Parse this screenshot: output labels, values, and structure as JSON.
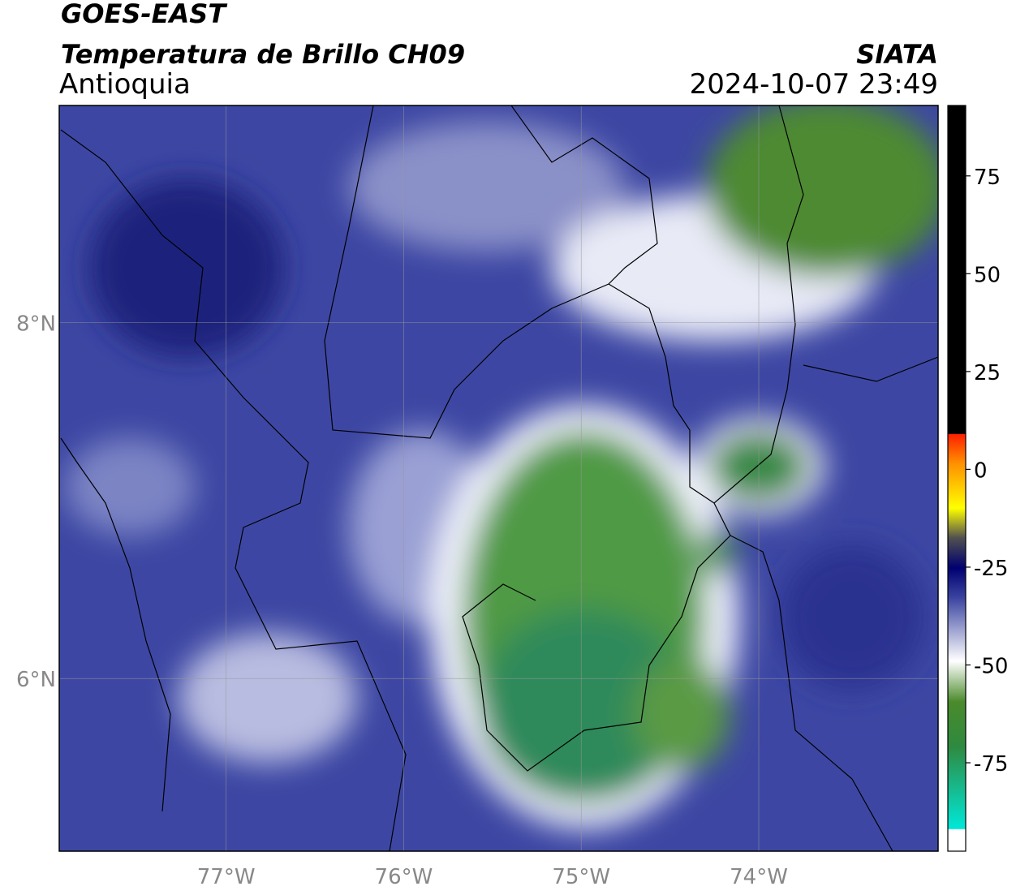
{
  "header": {
    "satellite": "GOES-EAST",
    "product": "Temperatura de Brillo CH09",
    "region": "Antioquia",
    "source": "SIATA",
    "datetime": "2024-10-07 23:49"
  },
  "map": {
    "lonlim": [
      -77.94,
      -72.99
    ],
    "latlim": [
      5.03,
      9.22
    ],
    "lon_ticks": [
      {
        "value": -77,
        "label": "77°W"
      },
      {
        "value": -76,
        "label": "76°W"
      },
      {
        "value": -75,
        "label": "75°W"
      },
      {
        "value": -74,
        "label": "74°W"
      }
    ],
    "lat_ticks": [
      {
        "value": 8,
        "label": "8°N"
      },
      {
        "value": 6,
        "label": "6°N"
      }
    ]
  },
  "colorbar": {
    "lim": [
      -97.6,
      93
    ],
    "ticks": [
      75,
      50,
      25,
      0,
      -25,
      -50,
      -75
    ]
  }
}
